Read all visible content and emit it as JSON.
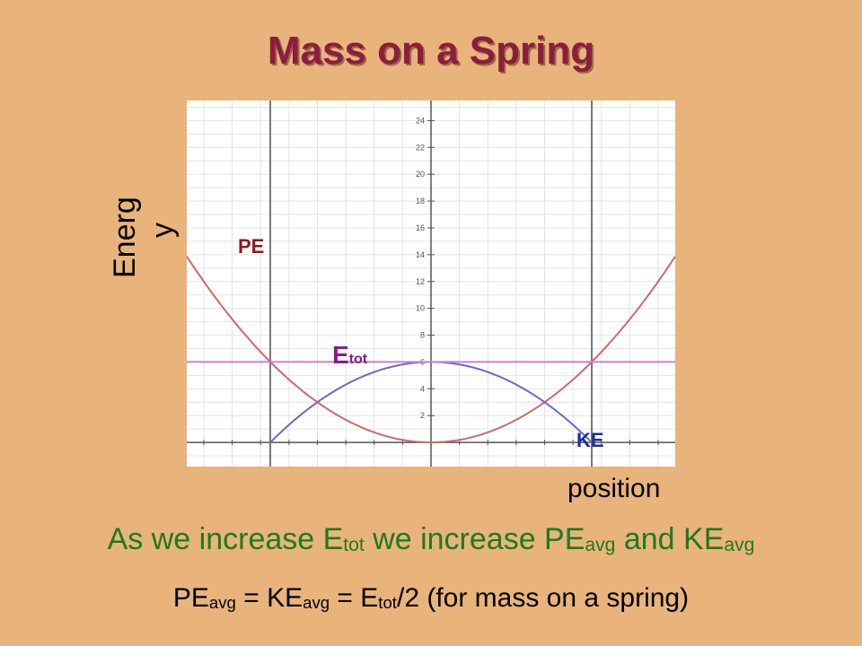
{
  "slide": {
    "title": "Mass on a Spring",
    "ylabel_part1": "Energ",
    "ylabel_part2": "y",
    "xlabel": "position",
    "labels": {
      "pe": "PE",
      "etot_main": "E",
      "etot_sub": "tot",
      "ke": "KE"
    },
    "line1": {
      "t1": "As we increase E",
      "t2": "tot",
      "t3": " we increase PE",
      "t4": "avg",
      "t5": " and KE",
      "t6": "avg"
    },
    "line2": {
      "t1": "PE",
      "t2": "avg",
      "t3": " = KE",
      "t4": "avg",
      "t5": " = E",
      "t6": "tot",
      "t7": "/2 (for mass on a spring)"
    }
  },
  "colors": {
    "background": "#E8B47C",
    "title": "#8A1E3C",
    "pe_curve": "#C96B6B",
    "ke_curve": "#6A6AC0",
    "etot_line": "#C97FD6",
    "caption": "#1E7A1E"
  },
  "chart_data": {
    "type": "line",
    "xlim": [
      -4.3,
      4.3
    ],
    "ylim": [
      -1.8,
      25.5
    ],
    "yticks": [
      2,
      4,
      6,
      8,
      10,
      12,
      14,
      16,
      18,
      20,
      22,
      24
    ],
    "ytick_labels": [
      "2",
      "4",
      "6",
      "8",
      "10",
      "12",
      "14",
      "16",
      "18",
      "20",
      "22",
      "24"
    ],
    "grid": true,
    "series": [
      {
        "name": "PE",
        "formula": "0.75*x^2",
        "x": [
          -4.3,
          -3,
          -2,
          -1,
          0,
          1,
          2,
          3,
          4.3
        ],
        "y": [
          13.87,
          6.75,
          3,
          0.75,
          0,
          0.75,
          3,
          6.75,
          13.87
        ]
      },
      {
        "name": "KE",
        "formula": "6-0.75*x^2",
        "x": [
          -2.83,
          -2,
          -1,
          0,
          1,
          2,
          2.83
        ],
        "y": [
          0,
          3,
          5.25,
          6,
          5.25,
          3,
          0
        ]
      },
      {
        "name": "Etot",
        "formula": "6",
        "x": [
          -4.3,
          4.3
        ],
        "y": [
          6,
          6
        ]
      }
    ],
    "turning_points": [
      -2.83,
      2.83
    ]
  }
}
